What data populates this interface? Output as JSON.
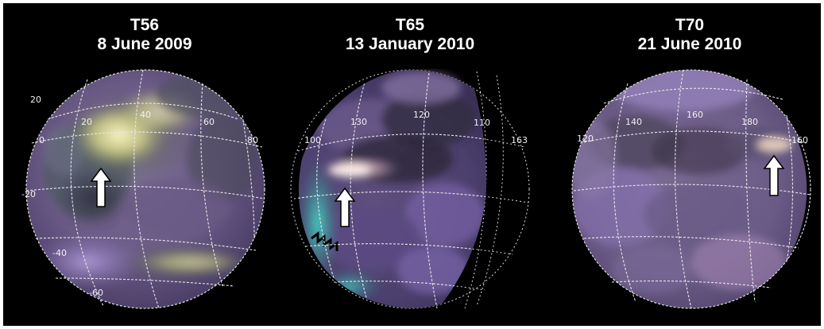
{
  "panels": [
    {
      "id": "T56",
      "date": "8 June 2009",
      "latitude_labels": [
        "20",
        "0",
        "-20",
        "-40",
        "-60"
      ],
      "longitude_labels": [
        "20",
        "40",
        "60",
        "80"
      ],
      "arrow_direction": "up"
    },
    {
      "id": "T65",
      "date": "13 January 2010",
      "latitude_labels": [
        "100"
      ],
      "longitude_labels": [
        "130",
        "120",
        "110",
        "163"
      ],
      "arrow_direction": "up"
    },
    {
      "id": "T70",
      "date": "21 June 2010",
      "latitude_labels": [],
      "longitude_labels": [
        "120",
        "140",
        "160",
        "180",
        "-160"
      ],
      "arrow_direction": "up"
    }
  ],
  "colors": {
    "background": "#000000",
    "frame": "#ffffff",
    "title_text": "#ffffff",
    "grid": "#e8e8e8",
    "arrow_fill": "#ffffff",
    "arrow_stroke": "#000000",
    "globe_base": "#6f5a86",
    "bright_feature": "#f2efb0",
    "cyan_edge": "#3fd6c8"
  }
}
